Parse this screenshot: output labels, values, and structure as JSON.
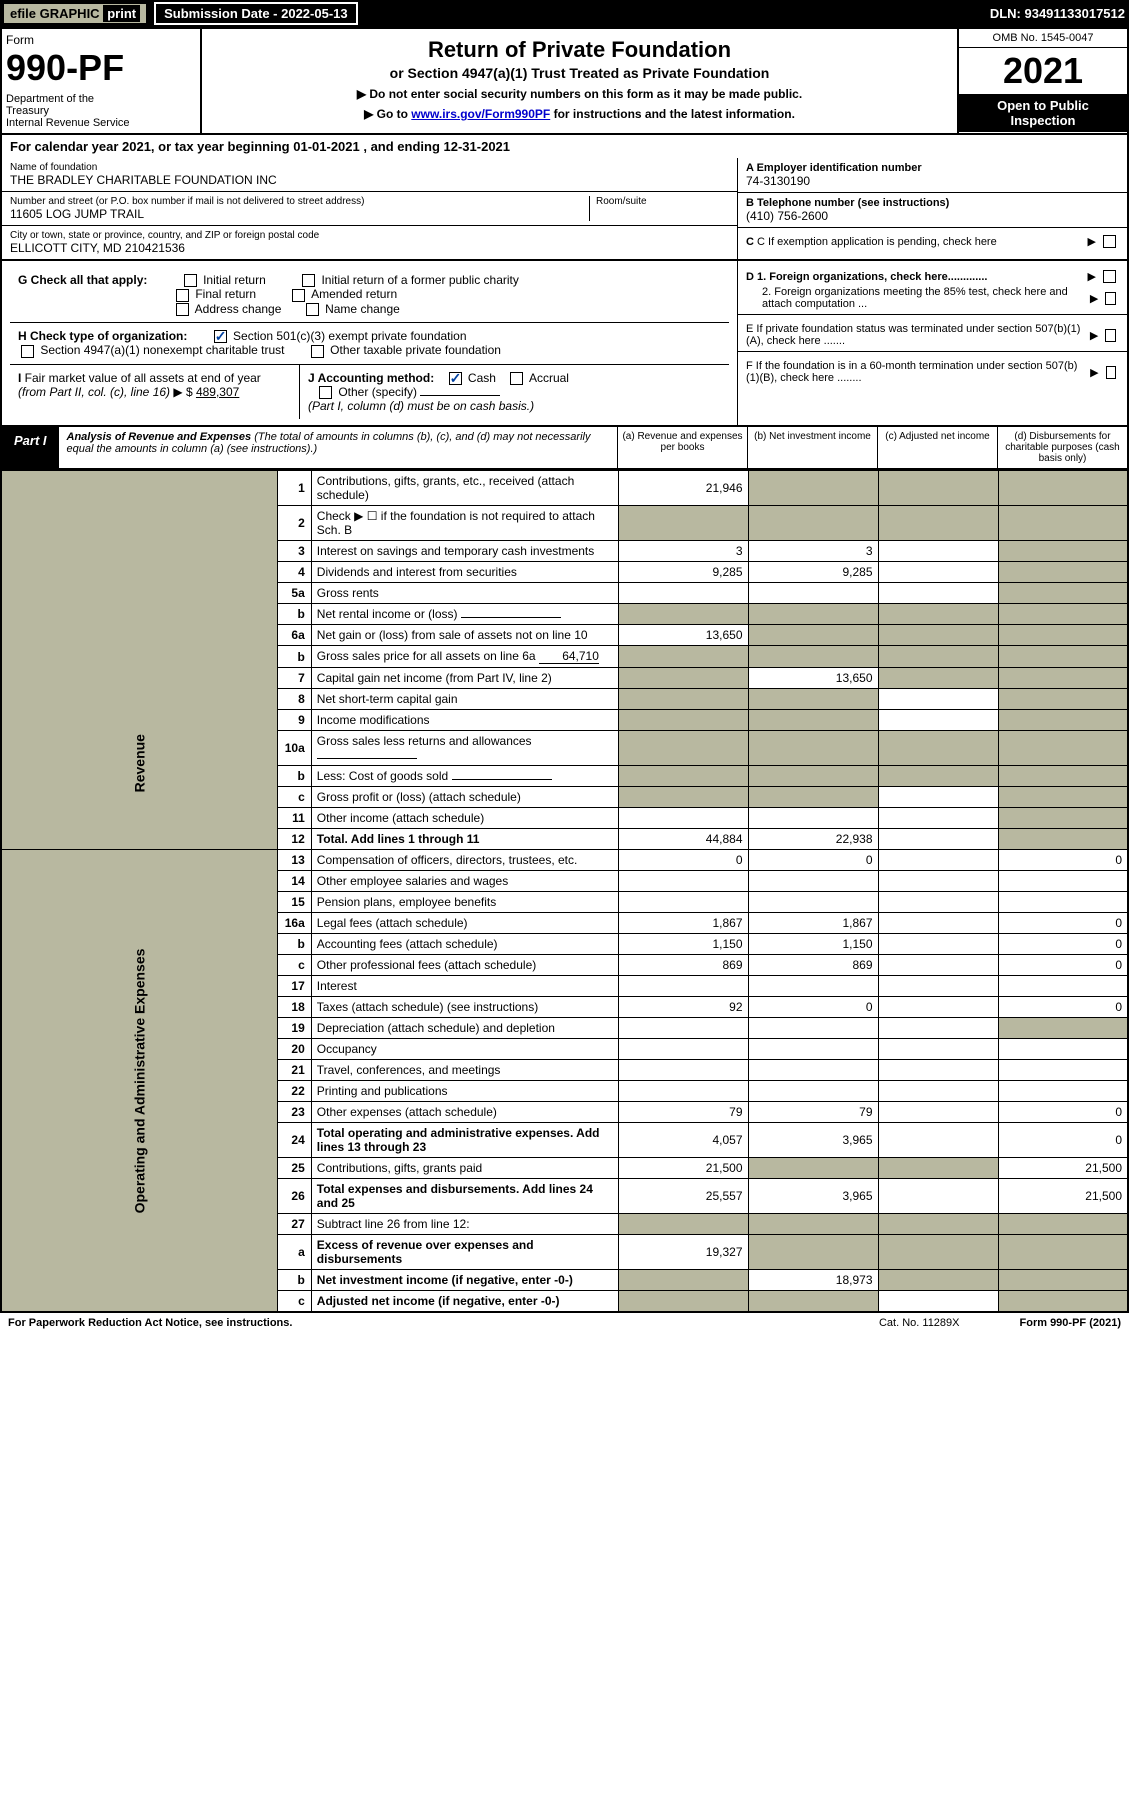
{
  "topbar": {
    "efile": "efile GRAPHIC",
    "print": "print",
    "sub_date_label": "Submission Date - 2022-05-13",
    "dln": "DLN: 93491133017512"
  },
  "header": {
    "form_label": "Form",
    "form_num": "990-PF",
    "dept": "Department of the Treasury\nInternal Revenue Service",
    "title": "Return of Private Foundation",
    "subtitle": "or Section 4947(a)(1) Trust Treated as Private Foundation",
    "note1": "▶ Do not enter social security numbers on this form as it may be made public.",
    "note2_pre": "▶ Go to ",
    "note2_link": "www.irs.gov/Form990PF",
    "note2_post": " for instructions and the latest information.",
    "omb": "OMB No. 1545-0047",
    "year": "2021",
    "open": "Open to Public Inspection"
  },
  "cal_year": {
    "pre": "For calendar year 2021, or tax year beginning ",
    "begin": "01-01-2021",
    "mid": " , and ending ",
    "end": "12-31-2021"
  },
  "info": {
    "name_label": "Name of foundation",
    "name": "THE BRADLEY CHARITABLE FOUNDATION INC",
    "addr_label": "Number and street (or P.O. box number if mail is not delivered to street address)",
    "addr": "11605 LOG JUMP TRAIL",
    "room_label": "Room/suite",
    "city_label": "City or town, state or province, country, and ZIP or foreign postal code",
    "city": "ELLICOTT CITY, MD  210421536",
    "a_label": "A Employer identification number",
    "a_val": "74-3130190",
    "b_label": "B Telephone number (see instructions)",
    "b_val": "(410) 756-2600",
    "c_label": "C If exemption application is pending, check here"
  },
  "g": {
    "label": "G Check all that apply:",
    "items": [
      "Initial return",
      "Initial return of a former public charity",
      "Final return",
      "Amended return",
      "Address change",
      "Name change"
    ]
  },
  "h": {
    "label": "H Check type of organization:",
    "opt1": "Section 501(c)(3) exempt private foundation",
    "opt2": "Section 4947(a)(1) nonexempt charitable trust",
    "opt3": "Other taxable private foundation"
  },
  "i": {
    "label": "I Fair market value of all assets at end of year (from Part II, col. (c), line 16) ▶ $",
    "val": "489,307"
  },
  "j": {
    "label": "J Accounting method:",
    "cash": "Cash",
    "accrual": "Accrual",
    "other": "Other (specify)",
    "note": "(Part I, column (d) must be on cash basis.)"
  },
  "d": {
    "d1": "D 1. Foreign organizations, check here.............",
    "d2": "2. Foreign organizations meeting the 85% test, check here and attach computation ...",
    "e": "E  If private foundation status was terminated under section 507(b)(1)(A), check here .......",
    "f": "F  If the foundation is in a 60-month termination under section 507(b)(1)(B), check here ........"
  },
  "part1": {
    "tag": "Part I",
    "title": "Analysis of Revenue and Expenses",
    "note": " (The total of amounts in columns (b), (c), and (d) may not necessarily equal the amounts in column (a) (see instructions).)",
    "cols": {
      "a": "(a) Revenue and expenses per books",
      "b": "(b) Net investment income",
      "c": "(c) Adjusted net income",
      "d": "(d) Disbursements for charitable purposes (cash basis only)"
    }
  },
  "side": {
    "revenue": "Revenue",
    "expenses": "Operating and Administrative Expenses"
  },
  "rows": [
    {
      "n": "1",
      "label": "Contributions, gifts, grants, etc., received (attach schedule)",
      "a": "21,946",
      "b": "",
      "c": "",
      "d": "",
      "shade_d": true,
      "shade_b": true,
      "shade_c": true
    },
    {
      "n": "2",
      "label": "Check ▶ ☐ if the foundation is not required to attach Sch. B",
      "a": "",
      "b": "",
      "c": "",
      "d": "",
      "shade_all": true
    },
    {
      "n": "3",
      "label": "Interest on savings and temporary cash investments",
      "a": "3",
      "b": "3",
      "c": "",
      "d": "",
      "shade_d": true
    },
    {
      "n": "4",
      "label": "Dividends and interest from securities",
      "a": "9,285",
      "b": "9,285",
      "c": "",
      "d": "",
      "shade_d": true
    },
    {
      "n": "5a",
      "label": "Gross rents",
      "a": "",
      "b": "",
      "c": "",
      "d": "",
      "shade_d": true
    },
    {
      "n": "b",
      "label": "Net rental income or (loss)",
      "a": "",
      "b": "",
      "c": "",
      "d": "",
      "shade_all": true,
      "inline": true
    },
    {
      "n": "6a",
      "label": "Net gain or (loss) from sale of assets not on line 10",
      "a": "13,650",
      "b": "",
      "c": "",
      "d": "",
      "shade_d": true,
      "shade_b": true,
      "shade_c": true
    },
    {
      "n": "b",
      "label": "Gross sales price for all assets on line 6a",
      "a": "",
      "b": "",
      "c": "",
      "d": "",
      "shade_all": true,
      "inline_val": "64,710"
    },
    {
      "n": "7",
      "label": "Capital gain net income (from Part IV, line 2)",
      "a": "",
      "b": "13,650",
      "c": "",
      "d": "",
      "shade_a": true,
      "shade_c": true,
      "shade_d": true
    },
    {
      "n": "8",
      "label": "Net short-term capital gain",
      "a": "",
      "b": "",
      "c": "",
      "d": "",
      "shade_a": true,
      "shade_b": true,
      "shade_d": true
    },
    {
      "n": "9",
      "label": "Income modifications",
      "a": "",
      "b": "",
      "c": "",
      "d": "",
      "shade_a": true,
      "shade_b": true,
      "shade_d": true
    },
    {
      "n": "10a",
      "label": "Gross sales less returns and allowances",
      "a": "",
      "b": "",
      "c": "",
      "d": "",
      "shade_all": true,
      "inline": true
    },
    {
      "n": "b",
      "label": "Less: Cost of goods sold",
      "a": "",
      "b": "",
      "c": "",
      "d": "",
      "shade_all": true,
      "inline": true
    },
    {
      "n": "c",
      "label": "Gross profit or (loss) (attach schedule)",
      "a": "",
      "b": "",
      "c": "",
      "d": "",
      "shade_a": true,
      "shade_b": true,
      "shade_d": true
    },
    {
      "n": "11",
      "label": "Other income (attach schedule)",
      "a": "",
      "b": "",
      "c": "",
      "d": "",
      "shade_d": true
    },
    {
      "n": "12",
      "label": "Total. Add lines 1 through 11",
      "a": "44,884",
      "b": "22,938",
      "c": "",
      "d": "",
      "bold": true,
      "shade_d": true
    },
    {
      "n": "13",
      "label": "Compensation of officers, directors, trustees, etc.",
      "a": "0",
      "b": "0",
      "c": "",
      "d": "0"
    },
    {
      "n": "14",
      "label": "Other employee salaries and wages",
      "a": "",
      "b": "",
      "c": "",
      "d": ""
    },
    {
      "n": "15",
      "label": "Pension plans, employee benefits",
      "a": "",
      "b": "",
      "c": "",
      "d": ""
    },
    {
      "n": "16a",
      "label": "Legal fees (attach schedule)",
      "a": "1,867",
      "b": "1,867",
      "c": "",
      "d": "0"
    },
    {
      "n": "b",
      "label": "Accounting fees (attach schedule)",
      "a": "1,150",
      "b": "1,150",
      "c": "",
      "d": "0"
    },
    {
      "n": "c",
      "label": "Other professional fees (attach schedule)",
      "a": "869",
      "b": "869",
      "c": "",
      "d": "0"
    },
    {
      "n": "17",
      "label": "Interest",
      "a": "",
      "b": "",
      "c": "",
      "d": ""
    },
    {
      "n": "18",
      "label": "Taxes (attach schedule) (see instructions)",
      "a": "92",
      "b": "0",
      "c": "",
      "d": "0"
    },
    {
      "n": "19",
      "label": "Depreciation (attach schedule) and depletion",
      "a": "",
      "b": "",
      "c": "",
      "d": "",
      "shade_d": true
    },
    {
      "n": "20",
      "label": "Occupancy",
      "a": "",
      "b": "",
      "c": "",
      "d": ""
    },
    {
      "n": "21",
      "label": "Travel, conferences, and meetings",
      "a": "",
      "b": "",
      "c": "",
      "d": ""
    },
    {
      "n": "22",
      "label": "Printing and publications",
      "a": "",
      "b": "",
      "c": "",
      "d": ""
    },
    {
      "n": "23",
      "label": "Other expenses (attach schedule)",
      "a": "79",
      "b": "79",
      "c": "",
      "d": "0"
    },
    {
      "n": "24",
      "label": "Total operating and administrative expenses. Add lines 13 through 23",
      "a": "4,057",
      "b": "3,965",
      "c": "",
      "d": "0",
      "bold": true
    },
    {
      "n": "25",
      "label": "Contributions, gifts, grants paid",
      "a": "21,500",
      "b": "",
      "c": "",
      "d": "21,500",
      "shade_b": true,
      "shade_c": true
    },
    {
      "n": "26",
      "label": "Total expenses and disbursements. Add lines 24 and 25",
      "a": "25,557",
      "b": "3,965",
      "c": "",
      "d": "21,500",
      "bold": true
    },
    {
      "n": "27",
      "label": "Subtract line 26 from line 12:",
      "a": "",
      "b": "",
      "c": "",
      "d": "",
      "shade_all": true
    },
    {
      "n": "a",
      "label": "Excess of revenue over expenses and disbursements",
      "a": "19,327",
      "b": "",
      "c": "",
      "d": "",
      "bold": true,
      "shade_b": true,
      "shade_c": true,
      "shade_d": true
    },
    {
      "n": "b",
      "label": "Net investment income (if negative, enter -0-)",
      "a": "",
      "b": "18,973",
      "c": "",
      "d": "",
      "bold": true,
      "shade_a": true,
      "shade_c": true,
      "shade_d": true
    },
    {
      "n": "c",
      "label": "Adjusted net income (if negative, enter -0-)",
      "a": "",
      "b": "",
      "c": "",
      "d": "",
      "bold": true,
      "shade_a": true,
      "shade_b": true,
      "shade_d": true
    }
  ],
  "footer": {
    "left": "For Paperwork Reduction Act Notice, see instructions.",
    "mid": "Cat. No. 11289X",
    "right": "Form 990-PF (2021)"
  }
}
